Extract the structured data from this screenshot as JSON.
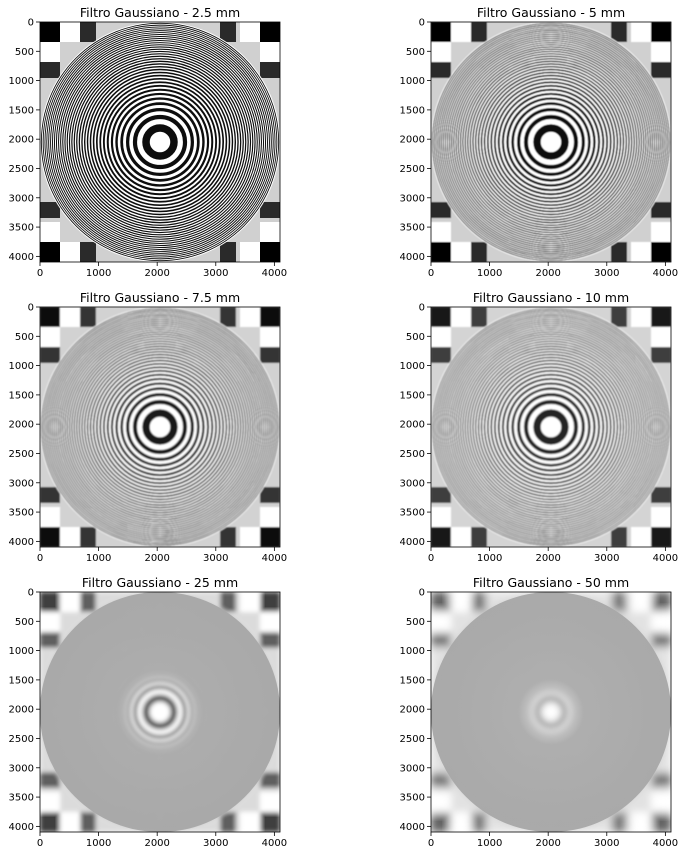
{
  "chart_data": [
    {
      "type": "image",
      "title": "Filtro Gaussiano - 2.5 mm",
      "blur": 0.3,
      "contrast": 1.0,
      "xticks": [
        0,
        1000,
        2000,
        3000,
        4000
      ],
      "yticks": [
        0,
        500,
        1000,
        1500,
        2000,
        2500,
        3000,
        3500,
        4000
      ],
      "xlim": [
        0,
        4096
      ],
      "ylim": [
        4096,
        0
      ]
    },
    {
      "type": "image",
      "title": "Filtro Gaussiano - 5 mm",
      "blur": 0.5,
      "contrast": 1.0,
      "xticks": [
        0,
        1000,
        2000,
        3000,
        4000
      ],
      "yticks": [
        0,
        500,
        1000,
        1500,
        2000,
        2500,
        3000,
        3500,
        4000
      ],
      "xlim": [
        0,
        4096
      ],
      "ylim": [
        4096,
        0
      ]
    },
    {
      "type": "image",
      "title": "Filtro Gaussiano - 7.5 mm",
      "blur": 0.7,
      "contrast": 0.95,
      "xticks": [
        0,
        1000,
        2000,
        3000,
        4000
      ],
      "yticks": [
        0,
        500,
        1000,
        1500,
        2000,
        2500,
        3000,
        3500,
        4000
      ],
      "xlim": [
        0,
        4096
      ],
      "ylim": [
        4096,
        0
      ]
    },
    {
      "type": "image",
      "title": "Filtro Gaussiano - 10 mm",
      "blur": 0.9,
      "contrast": 0.9,
      "xticks": [
        0,
        1000,
        2000,
        3000,
        4000
      ],
      "yticks": [
        0,
        500,
        1000,
        1500,
        2000,
        2500,
        3000,
        3500,
        4000
      ],
      "xlim": [
        0,
        4096
      ],
      "ylim": [
        4096,
        0
      ]
    },
    {
      "type": "image",
      "title": "Filtro Gaussiano - 25 mm",
      "blur": 2.0,
      "contrast": 0.75,
      "xticks": [
        0,
        1000,
        2000,
        3000,
        4000
      ],
      "yticks": [
        0,
        500,
        1000,
        1500,
        2000,
        2500,
        3000,
        3500,
        4000
      ],
      "xlim": [
        0,
        4096
      ],
      "ylim": [
        4096,
        0
      ]
    },
    {
      "type": "image",
      "title": "Filtro Gaussiano - 50 mm",
      "blur": 3.6,
      "contrast": 0.6,
      "xticks": [
        0,
        1000,
        2000,
        3000,
        4000
      ],
      "yticks": [
        0,
        500,
        1000,
        1500,
        2000,
        2500,
        3000,
        3500,
        4000
      ],
      "xlim": [
        0,
        4096
      ],
      "ylim": [
        4096,
        0
      ]
    }
  ]
}
